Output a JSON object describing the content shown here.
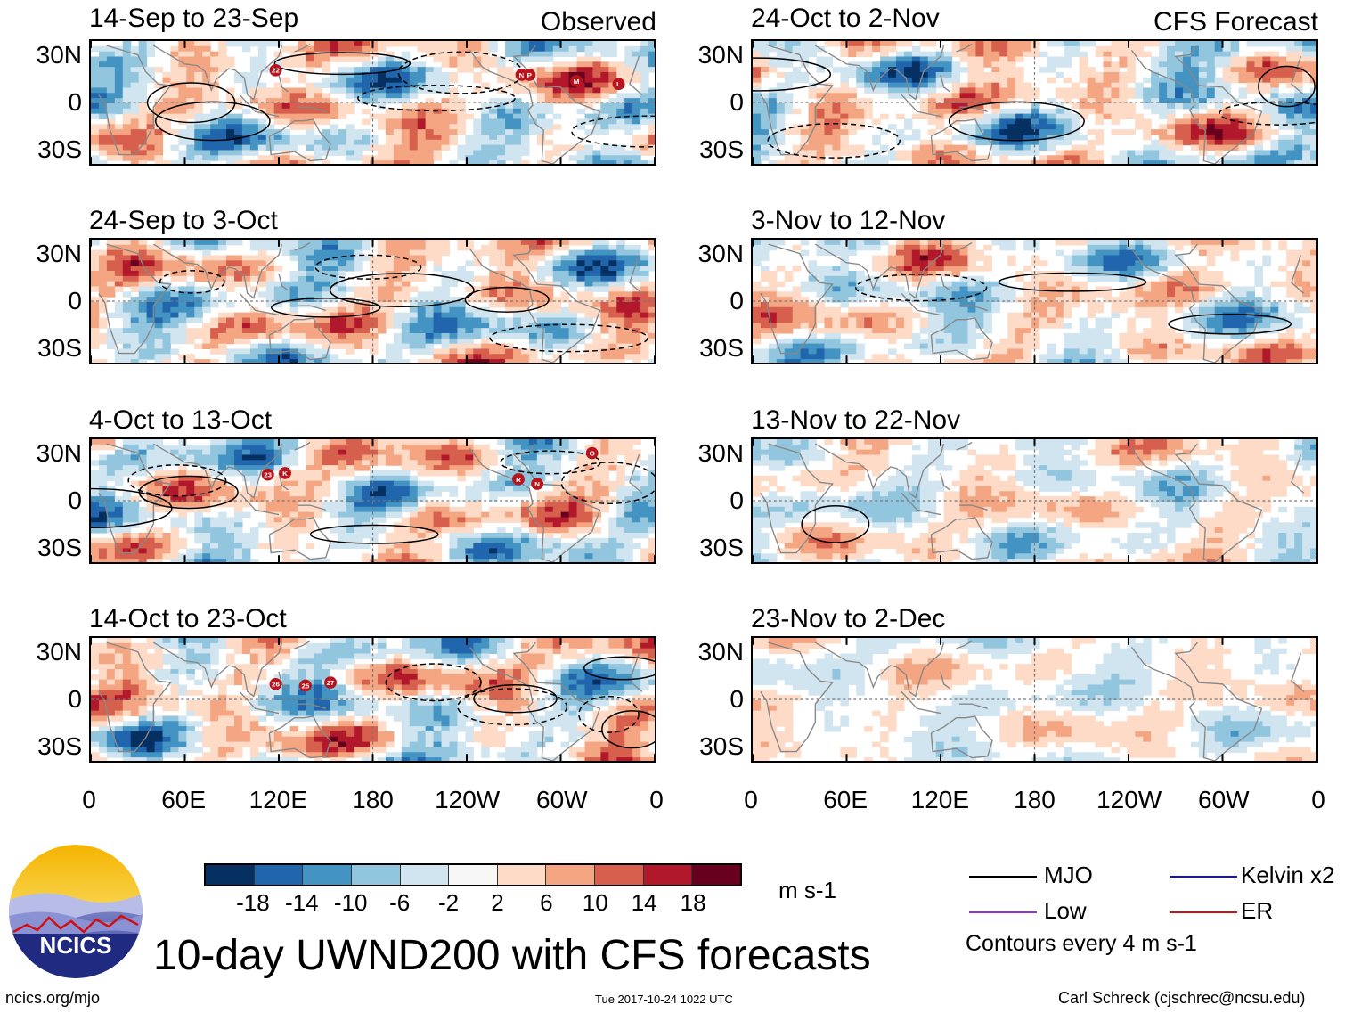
{
  "title": "10-day UWND200 with CFS forecasts",
  "panels": [
    {
      "title": "14-Sep to 23-Sep",
      "label": "Observed",
      "storms": [
        {
          "id": "22",
          "lon": 118,
          "lat": 21
        },
        {
          "id": "N",
          "lon": -85,
          "lat": 18
        },
        {
          "id": "P",
          "lon": -80,
          "lat": 18
        },
        {
          "id": "M",
          "lon": -50,
          "lat": 14
        },
        {
          "id": "L",
          "lon": -23,
          "lat": 12
        }
      ]
    },
    {
      "title": "24-Sep to 3-Oct",
      "label": "",
      "storms": []
    },
    {
      "title": "4-Oct to 13-Oct",
      "label": "",
      "storms": [
        {
          "id": "23",
          "lon": 113,
          "lat": 17
        },
        {
          "id": "K",
          "lon": 124,
          "lat": 18
        },
        {
          "id": "R",
          "lon": -87,
          "lat": 14
        },
        {
          "id": "N",
          "lon": -75,
          "lat": 11
        },
        {
          "id": "O",
          "lon": -40,
          "lat": 31
        }
      ]
    },
    {
      "title": "14-Oct to 23-Oct",
      "label": "",
      "storms": [
        {
          "id": "26",
          "lon": 118,
          "lat": 10
        },
        {
          "id": "25",
          "lon": 137,
          "lat": 9
        },
        {
          "id": "27",
          "lon": 153,
          "lat": 11
        }
      ]
    },
    {
      "title": "24-Oct to 2-Nov",
      "label": "CFS Forecast",
      "storms": []
    },
    {
      "title": "3-Nov to 12-Nov",
      "label": "",
      "storms": []
    },
    {
      "title": "13-Nov to 22-Nov",
      "label": "",
      "storms": []
    },
    {
      "title": "23-Nov to 2-Dec",
      "label": "",
      "storms": []
    }
  ],
  "lat_labels": [
    "30N",
    "0",
    "30S"
  ],
  "lon_labels": [
    "0",
    "60E",
    "120E",
    "180",
    "120W",
    "60W",
    "0"
  ],
  "colorbar": {
    "colors": [
      "#053061",
      "#2166ac",
      "#4393c3",
      "#92c5de",
      "#d1e5f0",
      "#f7f7f7",
      "#fddbc7",
      "#f4a582",
      "#d6604d",
      "#b2182b",
      "#67001f"
    ],
    "ticks": [
      "-18",
      "-14",
      "-10",
      "-6",
      "-2",
      "2",
      "6",
      "10",
      "14",
      "18"
    ],
    "units": "m s-1"
  },
  "legend": {
    "items": [
      {
        "label": "MJO",
        "color": "#000000"
      },
      {
        "label": "Kelvin x2",
        "color": "#1010c8"
      },
      {
        "label": "Low",
        "color": "#9b30d9"
      },
      {
        "label": "ER",
        "color": "#d01010"
      }
    ],
    "contour_note": "Contours every 4 m s-1"
  },
  "footer": {
    "url": "ncics.org/mjo",
    "timestamp": "Tue 2017-10-24 1022 UTC",
    "author": "Carl Schreck (cjschrec@ncsu.edu)",
    "logo_text": "NCICS"
  },
  "colors": {
    "land_outline": "#888888",
    "storm": "#b8141e"
  }
}
